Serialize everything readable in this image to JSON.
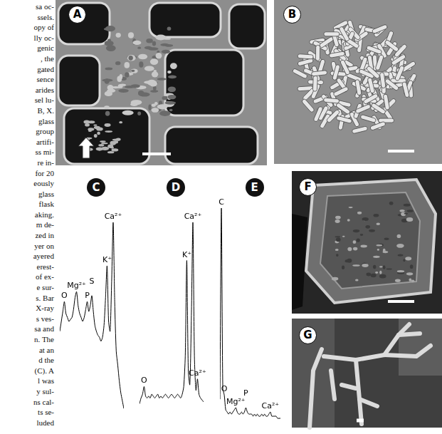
{
  "caption_fragments": [
    "sa oc-",
    "ssels.",
    "opy of",
    "lly oc-",
    "genic",
    ", the",
    "gated",
    "sence",
    "arides",
    "sel lu-",
    "B, X.",
    "glass",
    "group",
    "artifi-",
    "ss mi-",
    "re in-",
    "for 20",
    "eously",
    "glass",
    "flask",
    "aking.",
    "m de-",
    "zed in",
    "yer on",
    "ayered",
    "erest-",
    "of ex-",
    "e sur-",
    "s. Bar",
    "X-ray",
    "s ves-",
    "sa and",
    "n. The",
    "at an",
    "d the",
    "(C). A",
    "l was",
    "y sul-",
    "ns cal-",
    "ts se-",
    "luded"
  ],
  "images": [
    {
      "label": "A"
    },
    {
      "label": "B"
    },
    {
      "label": "F"
    },
    {
      "label": "G"
    }
  ],
  "chart_data": [
    {
      "type": "line",
      "title": "C",
      "tick_labels": false,
      "grid": false,
      "color": "#000000",
      "x": [
        0.2,
        0.3,
        0.4,
        0.5,
        0.6,
        0.7,
        0.8,
        0.9,
        1.0,
        1.1,
        1.2,
        1.3,
        1.4,
        1.5,
        1.6,
        1.7,
        1.8,
        1.9,
        2.0,
        2.1,
        2.2,
        2.3,
        2.4,
        2.5,
        2.6,
        2.7,
        2.8,
        2.9,
        3.0,
        3.1,
        3.2,
        3.3,
        3.4,
        3.5,
        3.6,
        3.7,
        3.8,
        3.9,
        4.0,
        4.1,
        4.2,
        4.3,
        4.4
      ],
      "values": [
        45,
        50,
        55,
        60,
        54,
        52,
        50,
        51,
        52,
        56,
        62,
        65,
        58,
        54,
        52,
        50,
        52,
        56,
        60,
        55,
        58,
        63,
        55,
        48,
        45,
        43,
        42,
        40,
        42,
        48,
        62,
        78,
        50,
        45,
        70,
        100,
        60,
        35,
        28,
        20,
        14,
        10,
        6
      ],
      "xlim": [
        0.2,
        4.4
      ],
      "ylim": [
        0,
        100
      ],
      "annotations": [
        {
          "text": "O",
          "x": 0.5
        },
        {
          "text": "Mg²⁺",
          "x": 1.3
        },
        {
          "text": "P",
          "x": 2.0
        },
        {
          "text": "S",
          "x": 2.3
        },
        {
          "text": "K⁺",
          "x": 3.3
        },
        {
          "text": "Ca²⁺",
          "x": 3.7
        }
      ]
    },
    {
      "type": "line",
      "title": "D",
      "tick_labels": false,
      "grid": false,
      "color": "#000000",
      "x": [
        0.2,
        0.3,
        0.4,
        0.5,
        0.6,
        0.7,
        0.8,
        0.9,
        1.0,
        1.1,
        1.2,
        1.3,
        1.4,
        1.5,
        1.6,
        1.7,
        1.8,
        1.9,
        2.0,
        2.1,
        2.2,
        2.3,
        2.4,
        2.5,
        2.6,
        2.7,
        2.8,
        2.9,
        3.0,
        3.1,
        3.2,
        3.3,
        3.4,
        3.5,
        3.6,
        3.7,
        3.8,
        3.9,
        4.0,
        4.1,
        4.2,
        4.3,
        4.4
      ],
      "values": [
        5,
        8,
        10,
        14,
        9,
        8,
        9,
        8,
        10,
        9,
        8,
        9,
        10,
        8,
        9,
        8,
        9,
        10,
        9,
        8,
        9,
        10,
        9,
        8,
        9,
        10,
        9,
        8,
        10,
        14,
        30,
        80,
        22,
        15,
        50,
        100,
        30,
        12,
        18,
        10,
        8,
        7,
        6
      ],
      "xlim": [
        0.2,
        4.4
      ],
      "ylim": [
        0,
        100
      ],
      "annotations": [
        {
          "text": "O",
          "x": 0.5
        },
        {
          "text": "K⁺",
          "x": 3.3
        },
        {
          "text": "Ca²⁺",
          "x": 3.7
        },
        {
          "text": "Ca²⁺",
          "x": 4.0
        }
      ]
    },
    {
      "type": "line",
      "title": "E",
      "tick_labels": false,
      "grid": false,
      "color": "#000000",
      "x": [
        0.2,
        0.3,
        0.4,
        0.5,
        0.6,
        0.7,
        0.8,
        0.9,
        1.0,
        1.1,
        1.2,
        1.3,
        1.4,
        1.5,
        1.6,
        1.7,
        1.8,
        1.9,
        2.0,
        2.1,
        2.2,
        2.3,
        2.4,
        2.5,
        2.6,
        2.7,
        2.8,
        2.9,
        3.0,
        3.1,
        3.2,
        3.3,
        3.4,
        3.5,
        3.6,
        3.7,
        3.8,
        3.9,
        4.0,
        4.1,
        4.2,
        4.3,
        4.4
      ],
      "values": [
        10,
        100,
        15,
        12,
        5,
        4,
        3,
        4,
        3,
        4,
        5,
        6,
        4,
        3,
        3,
        4,
        3,
        4,
        6,
        4,
        3,
        3,
        3,
        2,
        3,
        2,
        3,
        2,
        2,
        3,
        2,
        3,
        2,
        2,
        3,
        4,
        2,
        2,
        2,
        2,
        1,
        1,
        1
      ],
      "xlim": [
        0.2,
        4.4
      ],
      "ylim": [
        0,
        100
      ],
      "annotations": [
        {
          "text": "C",
          "x": 0.3
        },
        {
          "text": "O",
          "x": 0.5
        },
        {
          "text": "Mg²⁺",
          "x": 1.3
        },
        {
          "text": "P",
          "x": 2.0
        },
        {
          "text": "Ca²⁺",
          "x": 3.7
        }
      ]
    }
  ]
}
